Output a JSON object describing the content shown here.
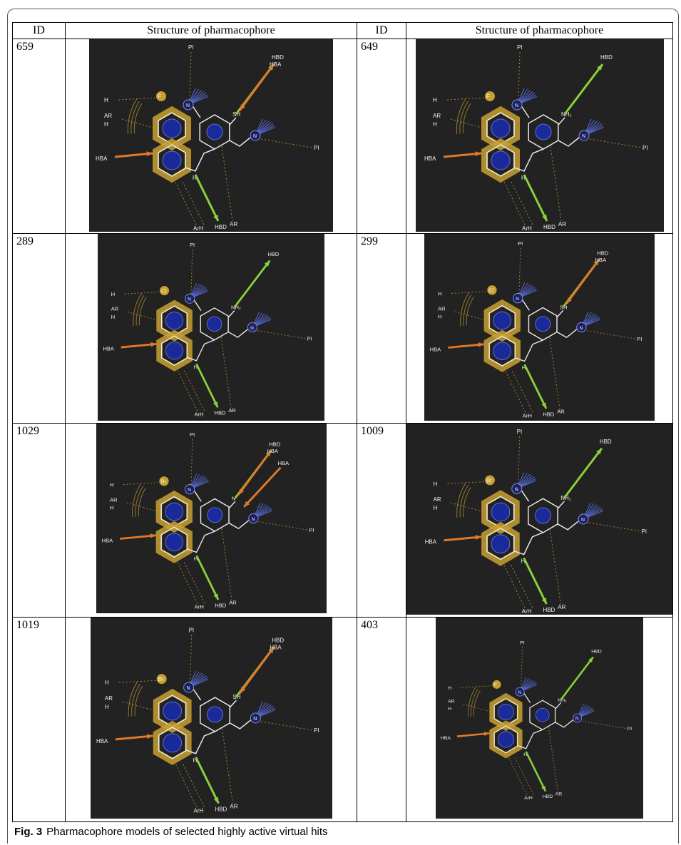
{
  "table": {
    "headers": [
      "ID",
      "Structure of pharmacophore",
      "ID",
      "Structure of pharmacophore"
    ],
    "rows": [
      [
        {
          "id": "659",
          "substituent": "F",
          "pos": "SH",
          "posHbd": [
            "HBD",
            "HBA"
          ],
          "extraHba": false
        },
        {
          "id": "649",
          "substituent": "F",
          "pos": "NH₂",
          "posHbd": [
            "HBD"
          ],
          "extraHba": false
        }
      ],
      [
        {
          "id": "289",
          "substituent": "Cl",
          "pos": "NH₂",
          "posHbd": [
            "HBD"
          ],
          "extraHba": false
        },
        {
          "id": "299",
          "substituent": "Cl",
          "pos": "SH",
          "posHbd": [
            "HBD",
            "HBA"
          ],
          "extraHba": false
        }
      ],
      [
        {
          "id": "1029",
          "substituent": "Br",
          "pos": "N",
          "posHbd": [
            "HBD",
            "HBA"
          ],
          "extraHba": true
        },
        {
          "id": "1009",
          "substituent": "Br",
          "pos": "NH₂",
          "posHbd": [
            "HBD"
          ],
          "extraHba": false
        }
      ],
      [
        {
          "id": "1019",
          "substituent": "Br",
          "pos": "SH",
          "posHbd": [
            "HBD",
            "HBA"
          ],
          "extraHba": false
        },
        {
          "id": "403",
          "substituent": "F",
          "pos": "NH₂",
          "posHbd": [
            "HBD"
          ],
          "extraHba": false
        }
      ]
    ],
    "feature_labels": {
      "hba": "HBA",
      "hbd": "HBD",
      "h": "H",
      "ar": "AR",
      "pi": "PI",
      "arh": "ArH",
      "nh": "H",
      "n": "N"
    }
  },
  "caption": {
    "label": "Fig. 3",
    "text": "Pharmacophore models of selected highly active virtual hits"
  },
  "colors": {
    "panel": "#222222",
    "gold": "#c8a030",
    "hbd": "#8ad13a",
    "hba": "#e07a2a",
    "blue": "#1a2a9a"
  }
}
